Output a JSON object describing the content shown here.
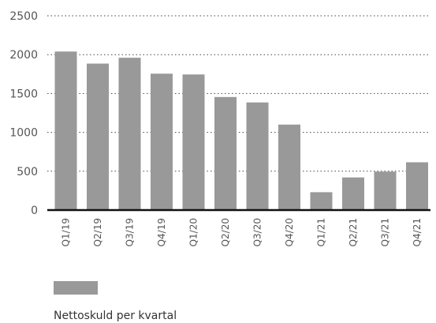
{
  "chart_data": {
    "type": "bar",
    "categories": [
      "Q1/19",
      "Q2/19",
      "Q3/19",
      "Q4/19",
      "Q1/20",
      "Q2/20",
      "Q3/20",
      "Q4/20",
      "Q1/21",
      "Q2/21",
      "Q3/21",
      "Q4/21"
    ],
    "series": [
      {
        "name": "Nettoskuld per kvartal",
        "values": [
          2040,
          1885,
          1960,
          1755,
          1745,
          1455,
          1385,
          1100,
          230,
          420,
          495,
          615
        ],
        "color": "#999999"
      }
    ],
    "y_ticks": [
      "0",
      "500",
      "1000",
      "1500",
      "2000",
      "2500"
    ],
    "ylim": [
      0,
      2500
    ],
    "grid": "horizontal-dotted",
    "legend_position": "bottom-left",
    "title": "",
    "xlabel": "",
    "ylabel": ""
  }
}
